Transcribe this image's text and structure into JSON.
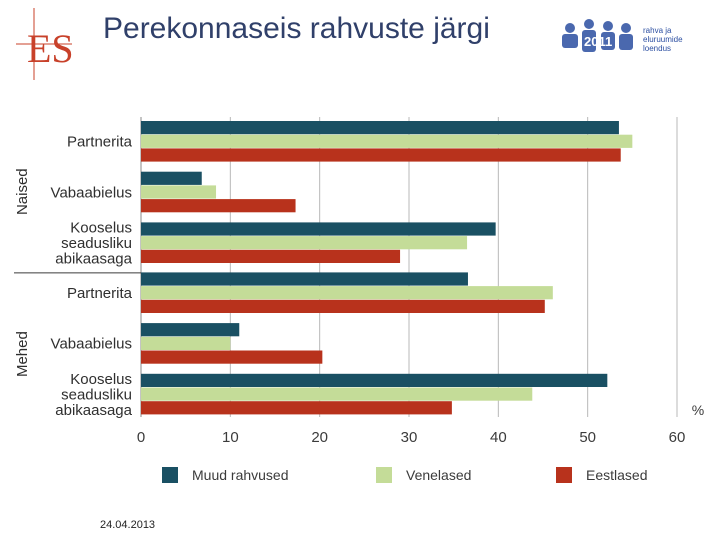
{
  "slide": {
    "title": "Perekonnaseis rahvuste järgi",
    "date": "24.04.2013",
    "logo_text": "ES",
    "census_logo_text": "rahva ja\neluruumide\nloendus",
    "census_logo_digits": "2011"
  },
  "chart_data": {
    "type": "bar",
    "orientation": "horizontal",
    "x_unit": "%",
    "xlim": [
      0,
      60
    ],
    "x_ticks": [
      0,
      10,
      20,
      30,
      40,
      50,
      60
    ],
    "grid": true,
    "legend_position": "bottom",
    "groups": [
      {
        "label": "Naised",
        "categories": [
          {
            "label": "Partnerita",
            "values": [
              53.5,
              55.0,
              53.7
            ]
          },
          {
            "label": "Vabaabielus",
            "values": [
              6.8,
              8.4,
              17.3
            ]
          },
          {
            "label": "Kooselus seadusliku abikaasaga",
            "values": [
              39.7,
              36.5,
              29.0
            ]
          }
        ]
      },
      {
        "label": "Mehed",
        "categories": [
          {
            "label": "Partnerita",
            "values": [
              36.6,
              46.1,
              45.2
            ]
          },
          {
            "label": "Vabaabielus",
            "values": [
              11.0,
              10.0,
              20.3
            ]
          },
          {
            "label": "Kooselus seadusliku abikaasaga",
            "values": [
              52.2,
              43.8,
              34.8
            ]
          }
        ]
      }
    ],
    "series": [
      {
        "name": "Muud rahvused",
        "color": "#1a5063"
      },
      {
        "name": "Venelased",
        "color": "#c4dc98"
      },
      {
        "name": "Eestlased",
        "color": "#b8321c"
      }
    ]
  }
}
